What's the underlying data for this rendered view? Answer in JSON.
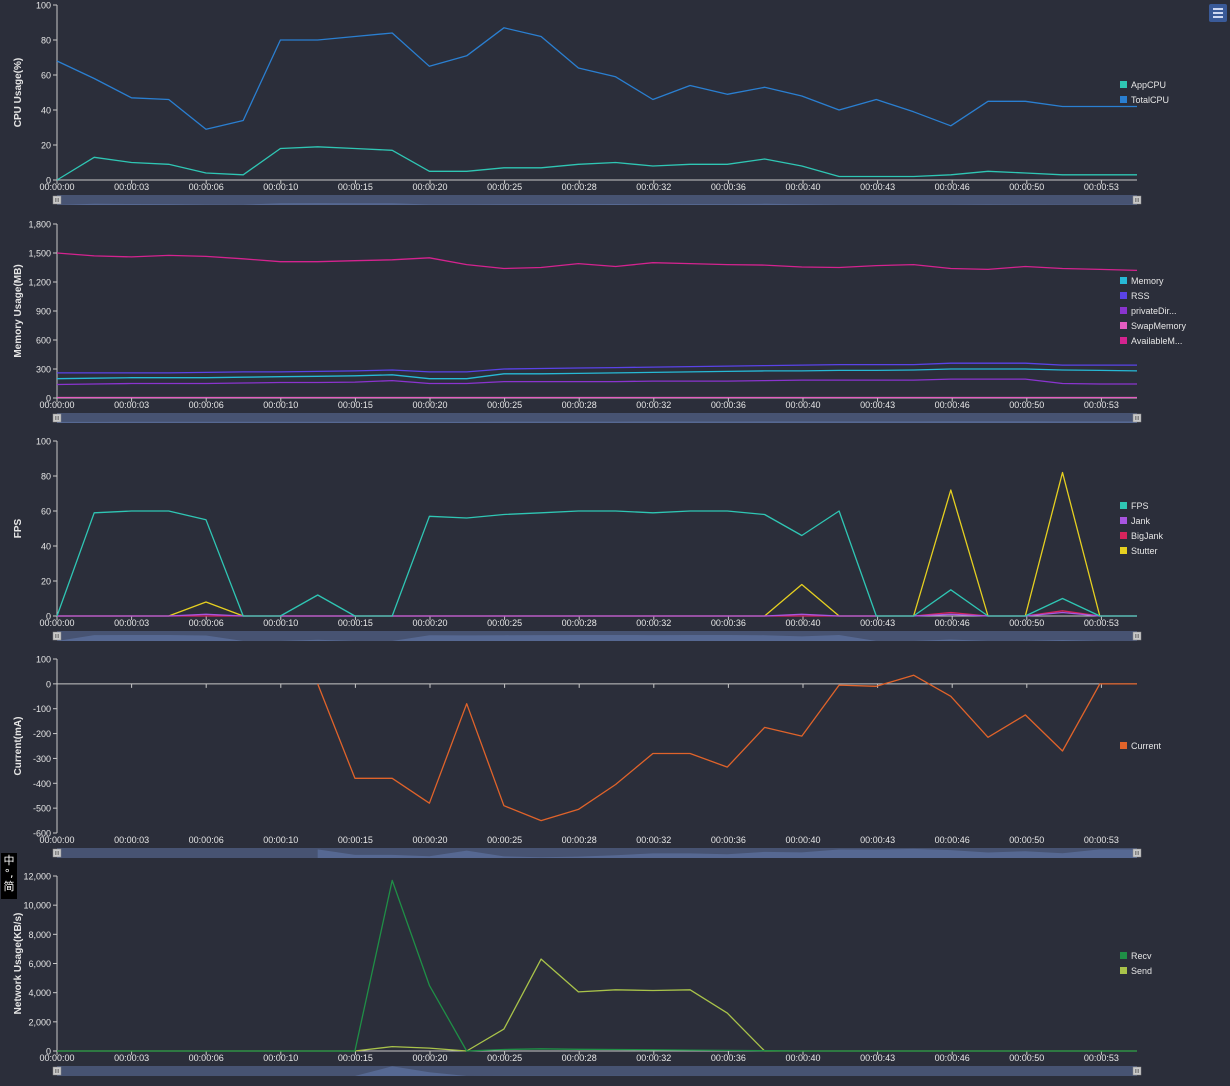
{
  "time_labels": [
    "00:00:00",
    "00:00:03",
    "00:00:06",
    "00:00:10",
    "00:00:15",
    "00:00:20",
    "00:00:25",
    "00:00:28",
    "00:00:32",
    "00:00:36",
    "00:00:40",
    "00:00:43",
    "00:00:46",
    "00:00:50",
    "00:00:53"
  ],
  "colors": {
    "background": "#2b2e3a",
    "axis": "#c8c8c8",
    "slider_track": "#475372",
    "slider_fill": "#5a6e9a",
    "handle": "#c9c9c9",
    "corner_button": "#3a5a98"
  },
  "icons": {
    "corner_button": "menu-icon",
    "slider_handle": "grip-icon"
  },
  "lang_toggle": {
    "top": "中",
    "mid": "°,",
    "bottom": "简"
  },
  "chart_data": [
    {
      "type": "line",
      "ylabel": "CPU Usage(%)",
      "ylim": [
        0,
        100
      ],
      "yticks": [
        0,
        20,
        40,
        60,
        80,
        100
      ],
      "ytick_labels": [
        "0",
        "20",
        "40",
        "60",
        "80",
        "100"
      ],
      "x": [
        0,
        2,
        4,
        6,
        8,
        10,
        12,
        14,
        16,
        18,
        20,
        22,
        24,
        26,
        28,
        30,
        32,
        34,
        36,
        38,
        40,
        42,
        44,
        46,
        48,
        50,
        52,
        54,
        56,
        58
      ],
      "series": [
        {
          "name": "AppCPU",
          "color": "#2fc6b4",
          "values": [
            0,
            13,
            10,
            9,
            4,
            3,
            18,
            19,
            18,
            17,
            5,
            5,
            7,
            7,
            9,
            10,
            8,
            9,
            9,
            12,
            8,
            2,
            2,
            2,
            3,
            5,
            4,
            3,
            3,
            3
          ]
        },
        {
          "name": "TotalCPU",
          "color": "#2a7fd1",
          "values": [
            68,
            58,
            47,
            46,
            29,
            34,
            80,
            80,
            82,
            84,
            65,
            71,
            87,
            82,
            64,
            59,
            46,
            54,
            49,
            53,
            48,
            40,
            46,
            39,
            31,
            45,
            45,
            42,
            42,
            42
          ]
        }
      ]
    },
    {
      "type": "line",
      "ylabel": "Memory Usage(MB)",
      "ylim": [
        0,
        1800
      ],
      "yticks": [
        0,
        300,
        600,
        900,
        1200,
        1500,
        1800
      ],
      "ytick_labels": [
        "0",
        "300",
        "600",
        "900",
        "1,200",
        "1,500",
        "1,800"
      ],
      "x": [
        0,
        2,
        4,
        6,
        8,
        10,
        12,
        14,
        16,
        18,
        20,
        22,
        24,
        26,
        28,
        30,
        32,
        34,
        36,
        38,
        40,
        42,
        44,
        46,
        48,
        50,
        52,
        54,
        56,
        58
      ],
      "series": [
        {
          "name": "Memory",
          "color": "#27b9d6",
          "values": [
            200,
            205,
            210,
            210,
            210,
            215,
            220,
            225,
            230,
            240,
            200,
            200,
            250,
            250,
            255,
            260,
            265,
            270,
            275,
            280,
            280,
            285,
            285,
            290,
            300,
            300,
            300,
            290,
            285,
            280
          ]
        },
        {
          "name": "RSS",
          "color": "#5a43e8",
          "values": [
            260,
            260,
            260,
            260,
            265,
            270,
            270,
            275,
            280,
            290,
            270,
            270,
            300,
            305,
            310,
            315,
            320,
            325,
            330,
            335,
            340,
            345,
            345,
            345,
            360,
            360,
            360,
            340,
            340,
            340
          ]
        },
        {
          "name": "privateDir...",
          "color": "#8a34cf",
          "values": [
            140,
            145,
            150,
            150,
            150,
            155,
            160,
            160,
            165,
            180,
            150,
            150,
            170,
            170,
            170,
            170,
            175,
            175,
            175,
            180,
            185,
            185,
            185,
            185,
            195,
            195,
            195,
            150,
            145,
            145
          ]
        },
        {
          "name": "SwapMemory",
          "color": "#e45cc0",
          "values": [
            5,
            5,
            5,
            5,
            5,
            5,
            5,
            5,
            5,
            5,
            5,
            5,
            5,
            5,
            5,
            5,
            5,
            5,
            5,
            5,
            5,
            5,
            5,
            5,
            5,
            5,
            5,
            5,
            5,
            5
          ]
        },
        {
          "name": "AvailableM...",
          "color": "#d4238f",
          "values": [
            1500,
            1470,
            1460,
            1475,
            1465,
            1440,
            1410,
            1410,
            1420,
            1430,
            1450,
            1380,
            1340,
            1350,
            1390,
            1360,
            1400,
            1390,
            1380,
            1375,
            1355,
            1350,
            1370,
            1380,
            1340,
            1330,
            1360,
            1340,
            1330,
            1320
          ]
        }
      ]
    },
    {
      "type": "line",
      "ylabel": "FPS",
      "ylim": [
        0,
        100
      ],
      "yticks": [
        0,
        20,
        40,
        60,
        80,
        100
      ],
      "ytick_labels": [
        "0",
        "20",
        "40",
        "60",
        "80",
        "100"
      ],
      "x": [
        0,
        2,
        4,
        6,
        8,
        10,
        12,
        14,
        16,
        18,
        20,
        22,
        24,
        26,
        28,
        30,
        32,
        34,
        36,
        38,
        40,
        42,
        44,
        46,
        48,
        50,
        52,
        54,
        56,
        58
      ],
      "series": [
        {
          "name": "FPS",
          "color": "#2fc6b4",
          "values": [
            0,
            59,
            60,
            60,
            55,
            0,
            0,
            12,
            0,
            0,
            57,
            56,
            58,
            59,
            60,
            60,
            59,
            60,
            60,
            58,
            46,
            60,
            0,
            0,
            15,
            0,
            0,
            10,
            0,
            0
          ]
        },
        {
          "name": "Jank",
          "color": "#a855e0",
          "values": [
            0,
            0,
            0,
            0,
            1,
            0,
            0,
            0,
            0,
            0,
            0,
            0,
            0,
            0,
            0,
            0,
            0,
            0,
            0,
            0,
            1,
            0,
            0,
            0,
            1,
            0,
            0,
            2,
            0,
            0
          ]
        },
        {
          "name": "BigJank",
          "color": "#d6245c",
          "values": [
            0,
            0,
            0,
            0,
            0,
            0,
            0,
            0,
            0,
            0,
            0,
            0,
            0,
            0,
            0,
            0,
            0,
            0,
            0,
            0,
            0,
            0,
            0,
            0,
            2,
            0,
            0,
            3,
            0,
            0
          ]
        },
        {
          "name": "Stutter",
          "color": "#e6d020",
          "values": [
            0,
            0,
            0,
            0,
            8,
            0,
            0,
            0,
            0,
            0,
            0,
            0,
            0,
            0,
            0,
            0,
            0,
            0,
            0,
            0,
            18,
            0,
            0,
            0,
            72,
            0,
            0,
            82,
            0,
            0
          ]
        }
      ]
    },
    {
      "type": "line",
      "ylabel": "Current(mA)",
      "ylim": [
        -600,
        100
      ],
      "yticks": [
        -600,
        -500,
        -400,
        -300,
        -200,
        -100,
        0,
        100
      ],
      "ytick_labels": [
        "-600",
        "-500",
        "-400",
        "-300",
        "-200",
        "-100",
        "0",
        "100"
      ],
      "zero_line": true,
      "x": [
        14,
        16,
        18,
        20,
        22,
        24,
        26,
        28,
        30,
        32,
        34,
        36,
        38,
        40,
        42,
        44,
        46,
        48,
        50,
        52,
        54,
        56,
        58
      ],
      "series": [
        {
          "name": "Current",
          "color": "#e0632a",
          "values": [
            0,
            -380,
            -380,
            -480,
            -80,
            -490,
            -550,
            -505,
            -405,
            -280,
            -280,
            -335,
            -175,
            -210,
            -5,
            -10,
            35,
            -50,
            -215,
            -125,
            -270,
            0,
            0
          ]
        }
      ]
    },
    {
      "type": "line",
      "ylabel": "Network Usage(KB/s)",
      "ylim": [
        0,
        12000
      ],
      "yticks": [
        0,
        2000,
        4000,
        6000,
        8000,
        10000,
        12000
      ],
      "ytick_labels": [
        "0",
        "2,000",
        "4,000",
        "6,000",
        "8,000",
        "10,000",
        "12,000"
      ],
      "x": [
        0,
        2,
        4,
        6,
        8,
        10,
        12,
        14,
        16,
        18,
        20,
        22,
        24,
        26,
        28,
        30,
        32,
        34,
        36,
        38,
        40,
        42,
        44,
        46,
        48,
        50,
        52,
        54,
        56,
        58
      ],
      "series": [
        {
          "name": "Recv",
          "color": "#1f8f46",
          "values": [
            0,
            0,
            0,
            0,
            0,
            0,
            0,
            0,
            0,
            11700,
            4500,
            0,
            100,
            150,
            120,
            100,
            80,
            60,
            40,
            20,
            0,
            0,
            0,
            0,
            0,
            0,
            0,
            0,
            0,
            0
          ]
        },
        {
          "name": "Send",
          "color": "#a9c34a",
          "values": [
            0,
            0,
            0,
            0,
            0,
            0,
            0,
            0,
            0,
            300,
            200,
            0,
            1500,
            6300,
            4050,
            4200,
            4150,
            4200,
            2600,
            0,
            0,
            0,
            0,
            0,
            0,
            0,
            0,
            0,
            0,
            0
          ]
        }
      ]
    }
  ]
}
